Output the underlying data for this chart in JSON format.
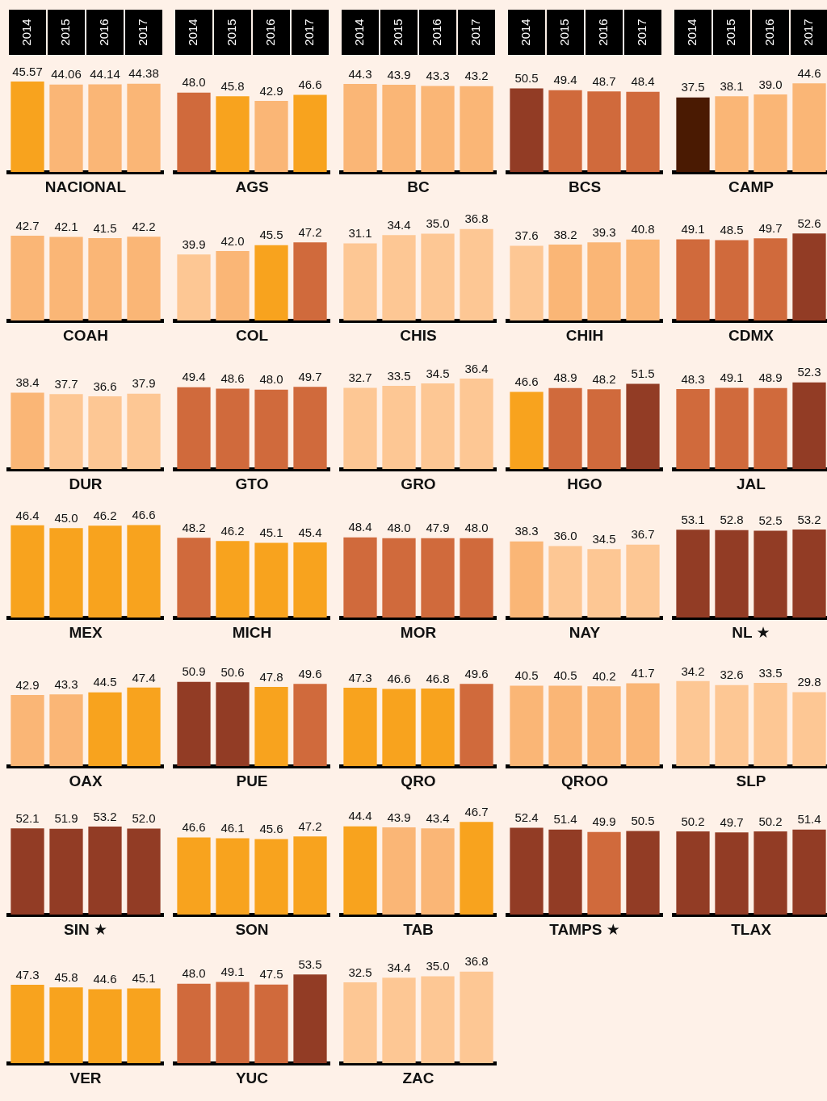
{
  "chart_data": [
    {
      "type": "bar",
      "title": "NACIONAL",
      "categories": [
        "2014",
        "2015",
        "2016",
        "2017"
      ],
      "values": [
        45.57,
        44.06,
        44.14,
        44.38
      ],
      "value_labels": [
        "45.57",
        "44.06",
        "44.14",
        "44.38"
      ],
      "colors": [
        "#f8a31e",
        "#fab676",
        "#fab676",
        "#fab676"
      ],
      "tick_labels": "x"
    },
    {
      "type": "bar",
      "title": "AGS",
      "categories": [
        "2014",
        "2015",
        "2016",
        "2017"
      ],
      "values": [
        48.0,
        45.8,
        42.9,
        46.6
      ],
      "value_labels": [
        "48.0",
        "45.8",
        "42.9",
        "46.6"
      ],
      "colors": [
        "#d06a3c",
        "#f8a31e",
        "#fab676",
        "#f8a31e"
      ],
      "tick_labels": "x"
    },
    {
      "type": "bar",
      "title": "BC",
      "categories": [
        "2014",
        "2015",
        "2016",
        "2017"
      ],
      "values": [
        44.3,
        43.9,
        43.3,
        43.2
      ],
      "value_labels": [
        "44.3",
        "43.9",
        "43.3",
        "43.2"
      ],
      "colors": [
        "#fab676",
        "#fab676",
        "#fab676",
        "#fab676"
      ],
      "tick_labels": "x"
    },
    {
      "type": "bar",
      "title": "BCS",
      "categories": [
        "2014",
        "2015",
        "2016",
        "2017"
      ],
      "values": [
        50.5,
        49.4,
        48.7,
        48.4
      ],
      "value_labels": [
        "50.5",
        "49.4",
        "48.7",
        "48.4"
      ],
      "colors": [
        "#923c25",
        "#d06a3c",
        "#d06a3c",
        "#d06a3c"
      ],
      "tick_labels": "x"
    },
    {
      "type": "bar",
      "title": "CAMP",
      "categories": [
        "2014",
        "2015",
        "2016",
        "2017"
      ],
      "values": [
        37.5,
        38.1,
        39.0,
        44.6
      ],
      "value_labels": [
        "37.5",
        "38.1",
        "39.0",
        "44.6"
      ],
      "colors": [
        "#4a1a02",
        "#fab676",
        "#fab676",
        "#fab676"
      ],
      "tick_labels": "x"
    },
    {
      "type": "bar",
      "title": "COAH",
      "categories": [
        "2014",
        "2015",
        "2016",
        "2017"
      ],
      "values": [
        42.7,
        42.1,
        41.5,
        42.2
      ],
      "value_labels": [
        "42.7",
        "42.1",
        "41.5",
        "42.2"
      ],
      "colors": [
        "#fab676",
        "#fab676",
        "#fab676",
        "#fab676"
      ],
      "tick_labels": false
    },
    {
      "type": "bar",
      "title": "COL",
      "categories": [
        "2014",
        "2015",
        "2016",
        "2017"
      ],
      "values": [
        39.9,
        42.0,
        45.5,
        47.2
      ],
      "value_labels": [
        "39.9",
        "42.0",
        "45.5",
        "47.2"
      ],
      "colors": [
        "#fdc794",
        "#fab676",
        "#f8a31e",
        "#d06a3c"
      ],
      "tick_labels": false
    },
    {
      "type": "bar",
      "title": "CHIS",
      "categories": [
        "2014",
        "2015",
        "2016",
        "2017"
      ],
      "values": [
        31.1,
        34.4,
        35.0,
        36.8
      ],
      "value_labels": [
        "31.1",
        "34.4",
        "35.0",
        "36.8"
      ],
      "colors": [
        "#fdc794",
        "#fdc794",
        "#fdc794",
        "#fdc794"
      ],
      "tick_labels": false
    },
    {
      "type": "bar",
      "title": "CHIH",
      "categories": [
        "2014",
        "2015",
        "2016",
        "2017"
      ],
      "values": [
        37.6,
        38.2,
        39.3,
        40.8
      ],
      "value_labels": [
        "37.6",
        "38.2",
        "39.3",
        "40.8"
      ],
      "colors": [
        "#fdc794",
        "#fab676",
        "#fab676",
        "#fab676"
      ],
      "tick_labels": false
    },
    {
      "type": "bar",
      "title": "CDMX",
      "categories": [
        "2014",
        "2015",
        "2016",
        "2017"
      ],
      "values": [
        49.1,
        48.5,
        49.7,
        52.6
      ],
      "value_labels": [
        "49.1",
        "48.5",
        "49.7",
        "52.6"
      ],
      "colors": [
        "#d06a3c",
        "#d06a3c",
        "#d06a3c",
        "#923c25"
      ],
      "tick_labels": false
    },
    {
      "type": "bar",
      "title": "DUR",
      "categories": [
        "2014",
        "2015",
        "2016",
        "2017"
      ],
      "values": [
        38.4,
        37.7,
        36.6,
        37.9
      ],
      "value_labels": [
        "38.4",
        "37.7",
        "36.6",
        "37.9"
      ],
      "colors": [
        "#fab676",
        "#fdc794",
        "#fdc794",
        "#fdc794"
      ],
      "tick_labels": false
    },
    {
      "type": "bar",
      "title": "GTO",
      "categories": [
        "2014",
        "2015",
        "2016",
        "2017"
      ],
      "values": [
        49.4,
        48.6,
        48.0,
        49.7
      ],
      "value_labels": [
        "49.4",
        "48.6",
        "48.0",
        "49.7"
      ],
      "colors": [
        "#d06a3c",
        "#d06a3c",
        "#d06a3c",
        "#d06a3c"
      ],
      "tick_labels": false
    },
    {
      "type": "bar",
      "title": "GRO",
      "categories": [
        "2014",
        "2015",
        "2016",
        "2017"
      ],
      "values": [
        32.7,
        33.5,
        34.5,
        36.4
      ],
      "value_labels": [
        "32.7",
        "33.5",
        "34.5",
        "36.4"
      ],
      "colors": [
        "#fdc794",
        "#fdc794",
        "#fdc794",
        "#fdc794"
      ],
      "tick_labels": false
    },
    {
      "type": "bar",
      "title": "HGO",
      "categories": [
        "2014",
        "2015",
        "2016",
        "2017"
      ],
      "values": [
        46.6,
        48.9,
        48.2,
        51.5
      ],
      "value_labels": [
        "46.6",
        "48.9",
        "48.2",
        "51.5"
      ],
      "colors": [
        "#f8a31e",
        "#d06a3c",
        "#d06a3c",
        "#923c25"
      ],
      "tick_labels": false
    },
    {
      "type": "bar",
      "title": "JAL",
      "categories": [
        "2014",
        "2015",
        "2016",
        "2017"
      ],
      "values": [
        48.3,
        49.1,
        48.9,
        52.3
      ],
      "value_labels": [
        "48.3",
        "49.1",
        "48.9",
        "52.3"
      ],
      "colors": [
        "#d06a3c",
        "#d06a3c",
        "#d06a3c",
        "#923c25"
      ],
      "tick_labels": false
    },
    {
      "type": "bar",
      "title": "MEX",
      "categories": [
        "2014",
        "2015",
        "2016",
        "2017"
      ],
      "values": [
        46.4,
        45.0,
        46.2,
        46.6
      ],
      "value_labels": [
        "46.4",
        "45.0",
        "46.2",
        "46.6"
      ],
      "colors": [
        "#f8a31e",
        "#f8a31e",
        "#f8a31e",
        "#f8a31e"
      ],
      "tick_labels": false
    },
    {
      "type": "bar",
      "title": "MICH",
      "categories": [
        "2014",
        "2015",
        "2016",
        "2017"
      ],
      "values": [
        48.2,
        46.2,
        45.1,
        45.4
      ],
      "value_labels": [
        "48.2",
        "46.2",
        "45.1",
        "45.4"
      ],
      "colors": [
        "#d06a3c",
        "#f8a31e",
        "#f8a31e",
        "#f8a31e"
      ],
      "tick_labels": false
    },
    {
      "type": "bar",
      "title": "MOR",
      "categories": [
        "2014",
        "2015",
        "2016",
        "2017"
      ],
      "values": [
        48.4,
        48.0,
        47.9,
        48.0
      ],
      "value_labels": [
        "48.4",
        "48.0",
        "47.9",
        "48.0"
      ],
      "colors": [
        "#d06a3c",
        "#d06a3c",
        "#d06a3c",
        "#d06a3c"
      ],
      "tick_labels": false
    },
    {
      "type": "bar",
      "title": "NAY",
      "categories": [
        "2014",
        "2015",
        "2016",
        "2017"
      ],
      "values": [
        38.3,
        36.0,
        34.5,
        36.7
      ],
      "value_labels": [
        "38.3",
        "36.0",
        "34.5",
        "36.7"
      ],
      "colors": [
        "#fab676",
        "#fdc794",
        "#fdc794",
        "#fdc794"
      ],
      "tick_labels": false
    },
    {
      "type": "bar",
      "title": "NL ★",
      "categories": [
        "2014",
        "2015",
        "2016",
        "2017"
      ],
      "values": [
        53.1,
        52.8,
        52.5,
        53.2
      ],
      "value_labels": [
        "53.1",
        "52.8",
        "52.5",
        "53.2"
      ],
      "colors": [
        "#923c25",
        "#923c25",
        "#923c25",
        "#923c25"
      ],
      "tick_labels": false
    },
    {
      "type": "bar",
      "title": "OAX",
      "categories": [
        "2014",
        "2015",
        "2016",
        "2017"
      ],
      "values": [
        42.9,
        43.3,
        44.5,
        47.4
      ],
      "value_labels": [
        "42.9",
        "43.3",
        "44.5",
        "47.4"
      ],
      "colors": [
        "#fab676",
        "#fab676",
        "#f8a31e",
        "#f8a31e"
      ],
      "tick_labels": false
    },
    {
      "type": "bar",
      "title": "PUE",
      "categories": [
        "2014",
        "2015",
        "2016",
        "2017"
      ],
      "values": [
        50.9,
        50.6,
        47.8,
        49.6
      ],
      "value_labels": [
        "50.9",
        "50.6",
        "47.8",
        "49.6"
      ],
      "colors": [
        "#923c25",
        "#923c25",
        "#f8a31e",
        "#d06a3c"
      ],
      "tick_labels": false
    },
    {
      "type": "bar",
      "title": "QRO",
      "categories": [
        "2014",
        "2015",
        "2016",
        "2017"
      ],
      "values": [
        47.3,
        46.6,
        46.8,
        49.6
      ],
      "value_labels": [
        "47.3",
        "46.6",
        "46.8",
        "49.6"
      ],
      "colors": [
        "#f8a31e",
        "#f8a31e",
        "#f8a31e",
        "#d06a3c"
      ],
      "tick_labels": false
    },
    {
      "type": "bar",
      "title": "QROO",
      "categories": [
        "2014",
        "2015",
        "2016",
        "2017"
      ],
      "values": [
        40.5,
        40.5,
        40.2,
        41.7
      ],
      "value_labels": [
        "40.5",
        "40.5",
        "40.2",
        "41.7"
      ],
      "colors": [
        "#fab676",
        "#fab676",
        "#fab676",
        "#fab676"
      ],
      "tick_labels": false
    },
    {
      "type": "bar",
      "title": "SLP",
      "categories": [
        "2014",
        "2015",
        "2016",
        "2017"
      ],
      "values": [
        34.2,
        32.6,
        33.5,
        29.8
      ],
      "value_labels": [
        "34.2",
        "32.6",
        "33.5",
        "29.8"
      ],
      "colors": [
        "#fdc794",
        "#fdc794",
        "#fdc794",
        "#fdc794"
      ],
      "tick_labels": false
    },
    {
      "type": "bar",
      "title": "SIN ★",
      "categories": [
        "2014",
        "2015",
        "2016",
        "2017"
      ],
      "values": [
        52.1,
        51.9,
        53.2,
        52.0
      ],
      "value_labels": [
        "52.1",
        "51.9",
        "53.2",
        "52.0"
      ],
      "colors": [
        "#923c25",
        "#923c25",
        "#923c25",
        "#923c25"
      ],
      "tick_labels": false
    },
    {
      "type": "bar",
      "title": "SON",
      "categories": [
        "2014",
        "2015",
        "2016",
        "2017"
      ],
      "values": [
        46.6,
        46.1,
        45.6,
        47.2
      ],
      "value_labels": [
        "46.6",
        "46.1",
        "45.6",
        "47.2"
      ],
      "colors": [
        "#f8a31e",
        "#f8a31e",
        "#f8a31e",
        "#f8a31e"
      ],
      "tick_labels": false
    },
    {
      "type": "bar",
      "title": "TAB",
      "categories": [
        "2014",
        "2015",
        "2016",
        "2017"
      ],
      "values": [
        44.4,
        43.9,
        43.4,
        46.7
      ],
      "value_labels": [
        "44.4",
        "43.9",
        "43.4",
        "46.7"
      ],
      "colors": [
        "#f8a31e",
        "#fab676",
        "#fab676",
        "#f8a31e"
      ],
      "tick_labels": false
    },
    {
      "type": "bar",
      "title": "TAMPS ★",
      "categories": [
        "2014",
        "2015",
        "2016",
        "2017"
      ],
      "values": [
        52.4,
        51.4,
        49.9,
        50.5
      ],
      "value_labels": [
        "52.4",
        "51.4",
        "49.9",
        "50.5"
      ],
      "colors": [
        "#923c25",
        "#923c25",
        "#d06a3c",
        "#923c25"
      ],
      "tick_labels": false
    },
    {
      "type": "bar",
      "title": "TLAX",
      "categories": [
        "2014",
        "2015",
        "2016",
        "2017"
      ],
      "values": [
        50.2,
        49.7,
        50.2,
        51.4
      ],
      "value_labels": [
        "50.2",
        "49.7",
        "50.2",
        "51.4"
      ],
      "colors": [
        "#923c25",
        "#923c25",
        "#923c25",
        "#923c25"
      ],
      "tick_labels": false
    },
    {
      "type": "bar",
      "title": "VER",
      "categories": [
        "2014",
        "2015",
        "2016",
        "2017"
      ],
      "values": [
        47.3,
        45.8,
        44.6,
        45.1
      ],
      "value_labels": [
        "47.3",
        "45.8",
        "44.6",
        "45.1"
      ],
      "colors": [
        "#f8a31e",
        "#f8a31e",
        "#f8a31e",
        "#f8a31e"
      ],
      "tick_labels": false
    },
    {
      "type": "bar",
      "title": "YUC",
      "categories": [
        "2014",
        "2015",
        "2016",
        "2017"
      ],
      "values": [
        48.0,
        49.1,
        47.5,
        53.5
      ],
      "value_labels": [
        "48.0",
        "49.1",
        "47.5",
        "53.5"
      ],
      "colors": [
        "#d06a3c",
        "#d06a3c",
        "#d06a3c",
        "#923c25"
      ],
      "tick_labels": false
    },
    {
      "type": "bar",
      "title": "ZAC",
      "categories": [
        "2014",
        "2015",
        "2016",
        "2017"
      ],
      "values": [
        32.5,
        34.4,
        35.0,
        36.8
      ],
      "value_labels": [
        "32.5",
        "34.4",
        "35.0",
        "36.8"
      ],
      "colors": [
        "#fdc794",
        "#fdc794",
        "#fdc794",
        "#fdc794"
      ],
      "tick_labels": false
    }
  ]
}
